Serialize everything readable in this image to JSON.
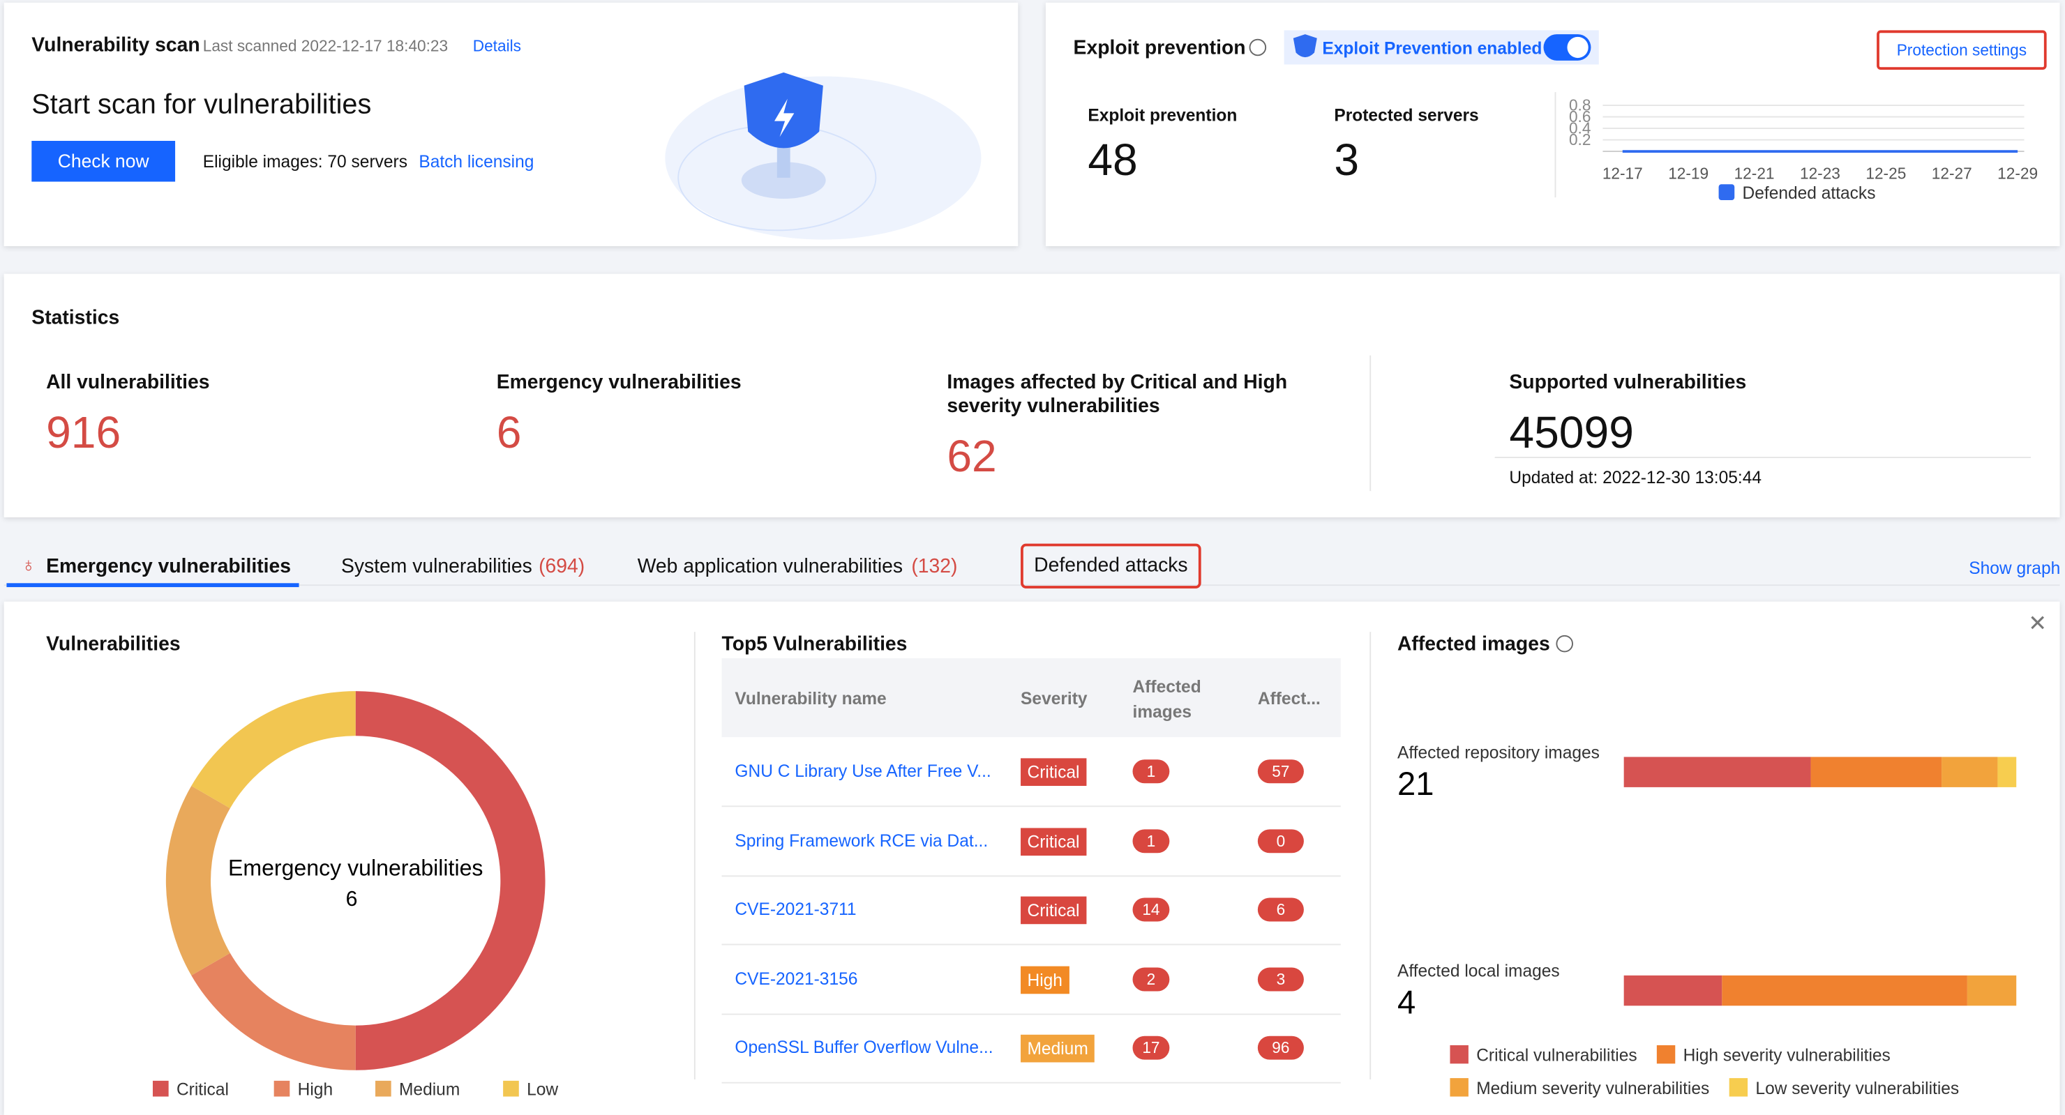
{
  "scan": {
    "title": "Vulnerability scan",
    "last_scanned": "Last scanned 2022-12-17 18:40:23",
    "details": "Details",
    "heading": "Start scan for vulnerabilities",
    "button": "Check now",
    "eligible": "Eligible images: 70 servers",
    "batch": "Batch licensing"
  },
  "exploit": {
    "title": "Exploit prevention",
    "badge": "Exploit Prevention enabled",
    "settings": "Protection settings",
    "stats": [
      {
        "label": "Exploit prevention",
        "value": 48
      },
      {
        "label": "Protected servers",
        "value": 3
      }
    ]
  },
  "statistics": {
    "title": "Statistics",
    "items": [
      {
        "label": "All vulnerabilities",
        "value": 916
      },
      {
        "label": "Emergency vulnerabilities",
        "value": 6
      },
      {
        "label": "Images affected by Critical and High severity vulnerabilities",
        "value": 62
      }
    ],
    "supported": {
      "label": "Supported vulnerabilities",
      "value": 45099,
      "updated": "Updated at: 2022-12-30 13:05:44"
    }
  },
  "tabs": [
    {
      "label": "Emergency vulnerabilities"
    },
    {
      "label": "System vulnerabilities",
      "count": "(694)"
    },
    {
      "label": "Web application vulnerabilities",
      "count": "(132)"
    },
    {
      "label": "Defended attacks"
    }
  ],
  "show_graph": "Show graph",
  "panels": {
    "vulnerabilities": "Vulnerabilities",
    "top5": "Top5 Vulnerabilities",
    "affected": "Affected images"
  },
  "table": {
    "headers": [
      "Vulnerability name",
      "Severity",
      "Affected images",
      "Affect..."
    ],
    "rows": [
      [
        "GNU C Library Use After Free V...",
        "Critical",
        1,
        57
      ],
      [
        "Spring Framework RCE via Dat...",
        "Critical",
        1,
        0
      ],
      [
        "CVE-2021-3711",
        "Critical",
        14,
        6
      ],
      [
        "CVE-2021-3156",
        "High",
        2,
        3
      ],
      [
        "OpenSSL Buffer Overflow Vulne...",
        "Medium",
        17,
        96
      ]
    ]
  },
  "chart_data": [
    {
      "type": "line",
      "categories": [
        "12-17",
        "12-19",
        "12-21",
        "12-23",
        "12-25",
        "12-27",
        "12-29"
      ],
      "series": [
        {
          "name": "Defended attacks",
          "color": "#2f6bf0",
          "values": [
            0,
            0,
            0,
            0,
            0,
            0,
            0
          ]
        }
      ],
      "ylim": [
        0,
        0.8
      ],
      "yticks": [
        0.2,
        0.4,
        0.6,
        0.8
      ],
      "grid": true
    },
    {
      "type": "pie",
      "center_label": "Emergency vulnerabilities",
      "total": 6,
      "categories": [
        "Critical",
        "High",
        "Medium",
        "Low"
      ],
      "values": [
        3,
        1,
        1,
        1
      ],
      "colors": [
        "#d65352",
        "#e6835f",
        "#e9a95b",
        "#f2c651"
      ]
    },
    {
      "type": "stacked-bar",
      "categories": [
        "Affected repository images",
        "Affected local images"
      ],
      "totals": [
        21,
        4
      ],
      "series": [
        {
          "name": "Critical vulnerabilities",
          "color": "#d65352",
          "values": [
            10,
            1
          ]
        },
        {
          "name": "High severity vulnerabilities",
          "color": "#f0812f",
          "values": [
            7,
            2.5
          ]
        },
        {
          "name": "Medium severity vulnerabilities",
          "color": "#f2a33c",
          "values": [
            3,
            0.5
          ]
        },
        {
          "name": "Low severity vulnerabilities",
          "color": "#f7cd4f",
          "values": [
            1,
            0
          ]
        }
      ]
    }
  ]
}
